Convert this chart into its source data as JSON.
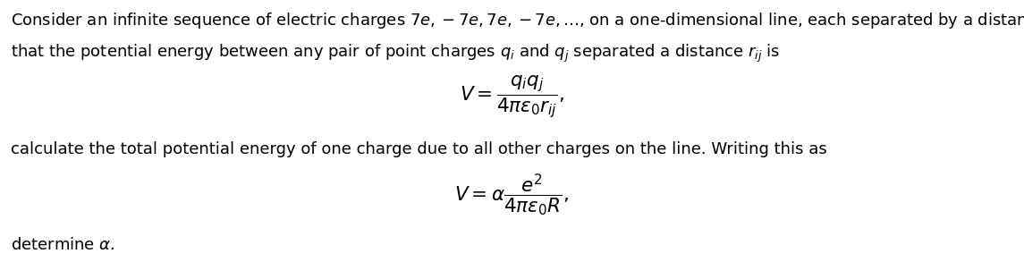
{
  "line1": "Consider an infinite sequence of electric charges $7e, -7e, 7e, -7e, \\ldots$, on a one-dimensional line, each separated by a distance $R$. Given",
  "line2": "that the potential energy between any pair of point charges $q_i$ and $q_j$ separated a distance $r_{ij}$ is",
  "eq1": "$V = \\dfrac{q_i q_j}{4\\pi\\epsilon_0 r_{ij}},$",
  "line3": "calculate the total potential energy of one charge due to all other charges on the line. Writing this as",
  "eq2": "$V = \\alpha \\dfrac{e^2}{4\\pi\\epsilon_0 R},$",
  "line4": "determine $\\alpha$.",
  "bg_color": "#ffffff",
  "text_color": "#000000",
  "fontsize_body": 13.0,
  "fontsize_eq": 15.5,
  "fig_width": 11.45,
  "fig_height": 2.93,
  "dpi": 100
}
